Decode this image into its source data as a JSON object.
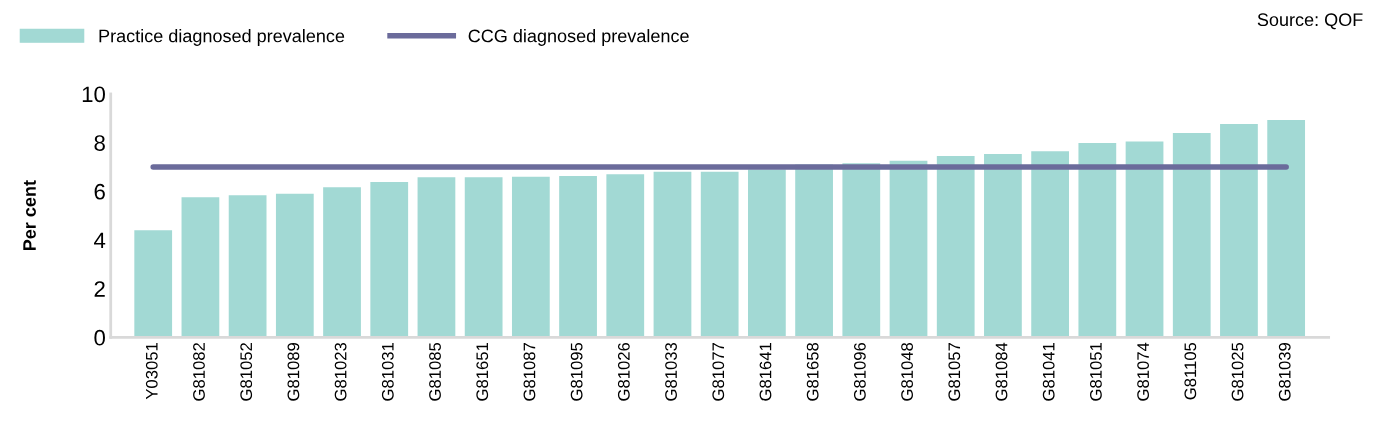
{
  "chart_data": {
    "type": "bar",
    "ylabel": "Per cent",
    "annotations": [
      "Source: QOF"
    ],
    "categories": [
      "Y03051",
      "G81082",
      "G81052",
      "G81089",
      "G81023",
      "G81031",
      "G81085",
      "G81651",
      "G81087",
      "G81095",
      "G81026",
      "G81033",
      "G81077",
      "G81641",
      "G81658",
      "G81096",
      "G81048",
      "G81057",
      "G81084",
      "G81041",
      "G81051",
      "G81074",
      "G81105",
      "G81025",
      "G81039"
    ],
    "series": [
      {
        "name": "Practice diagnosed prevalence",
        "color": "#a2d9d4",
        "values": [
          4.4,
          5.76,
          5.84,
          5.9,
          6.17,
          6.38,
          6.58,
          6.58,
          6.6,
          6.63,
          6.7,
          6.8,
          6.8,
          6.9,
          7.1,
          7.15,
          7.25,
          7.45,
          7.53,
          7.65,
          7.98,
          8.05,
          8.4,
          8.77,
          8.93
        ]
      },
      {
        "name": "CCG diagnosed prevalence",
        "type": "line",
        "color": "#6b6b9b",
        "values": [
          7.0,
          7.0,
          7.0,
          7.0,
          7.0,
          7.0,
          7.0,
          7.0,
          7.0,
          7.0,
          7.0,
          7.0,
          7.0,
          7.0,
          7.0,
          7.0,
          7.0,
          7.0,
          7.0,
          7.0,
          7.0,
          7.0,
          7.0,
          7.0,
          7.0
        ]
      }
    ],
    "ylim": [
      0,
      10
    ],
    "yticks": [
      0,
      2,
      4,
      6,
      8,
      10
    ],
    "grid": false,
    "legend": "top left",
    "marker": "none",
    "line_style": "solid"
  }
}
